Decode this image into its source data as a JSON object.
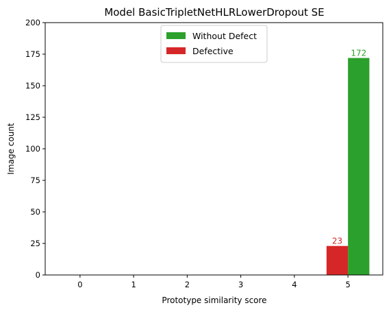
{
  "chart_data": {
    "type": "bar",
    "title": "Model BasicTripletNetHLRLowerDropout SE",
    "xlabel": "Prototype similarity score",
    "ylabel": "Image count",
    "categories": [
      "0",
      "1",
      "2",
      "3",
      "4",
      "5"
    ],
    "ylim": [
      0,
      200
    ],
    "yticks": [
      0,
      25,
      50,
      75,
      100,
      125,
      150,
      175,
      200
    ],
    "grid": false,
    "legend_position": "top-center",
    "series": [
      {
        "name": "Without Defect",
        "color": "#2ca02c",
        "values": [
          0,
          0,
          0,
          0,
          0,
          172
        ],
        "labels": [
          "",
          "",
          "",
          "",
          "",
          "172"
        ]
      },
      {
        "name": "Defective",
        "color": "#d62728",
        "values": [
          0,
          0,
          0,
          0,
          0,
          23
        ],
        "labels": [
          "",
          "",
          "",
          "",
          "",
          "23"
        ]
      }
    ]
  }
}
